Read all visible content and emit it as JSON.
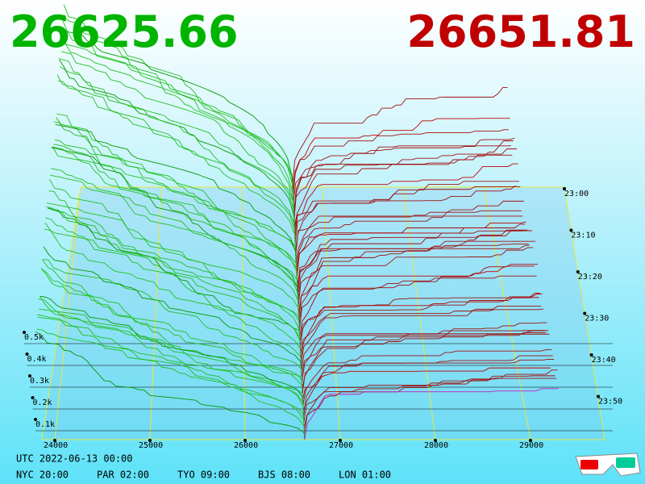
{
  "bid_price": "26625.66",
  "ask_price": "26651.81",
  "price_axis": {
    "ticks": [
      24000,
      25000,
      26000,
      27000,
      28000,
      29000
    ]
  },
  "depth_axis": {
    "ticks": [
      "0.5k",
      "0.4k",
      "0.3k",
      "0.2k",
      "0.1k"
    ]
  },
  "time_axis": {
    "ticks": [
      "23:00",
      "23:10",
      "23:20",
      "23:30",
      "23:40",
      "23:50"
    ]
  },
  "utc": "UTC 2022-06-13 00:00",
  "clocks": [
    "NYC 20:00",
    "PAR 02:00",
    "TYO 09:00",
    "BJS 08:00",
    "LON 01:00"
  ]
}
